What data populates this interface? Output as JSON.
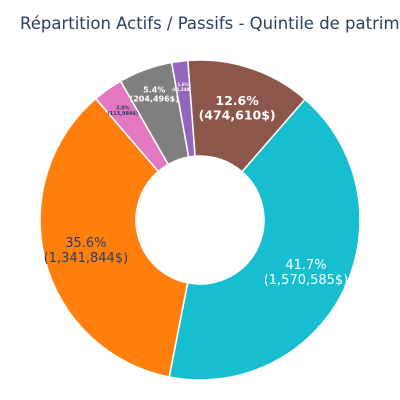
{
  "chart_data": {
    "type": "pie",
    "title": "Répartition Actifs / Passifs - Quintile de patrimo",
    "hole": true,
    "slices": [
      {
        "percent_label": "41.7%",
        "value_label": "(1,570,585$)",
        "value": 1570585,
        "color": "#17becf"
      },
      {
        "percent_label": "35.6%",
        "value_label": "(1,341,844$)",
        "value": 1341844,
        "color": "#ff7f0e"
      },
      {
        "percent_label": "3.0%",
        "value_label": "(113,984$)",
        "value": 113984,
        "color": "#e377c2"
      },
      {
        "percent_label": "5.4%",
        "value_label": "(204,496$)",
        "value": 204496,
        "color": "#7f7f7f"
      },
      {
        "percent_label": "1.6%",
        "value_label": "(61,248$)",
        "value": 61248,
        "color": "#9467bd"
      },
      {
        "percent_label": "12.6%",
        "value_label": "(474,610$)",
        "value": 474610,
        "color": "#8c564b"
      }
    ]
  }
}
